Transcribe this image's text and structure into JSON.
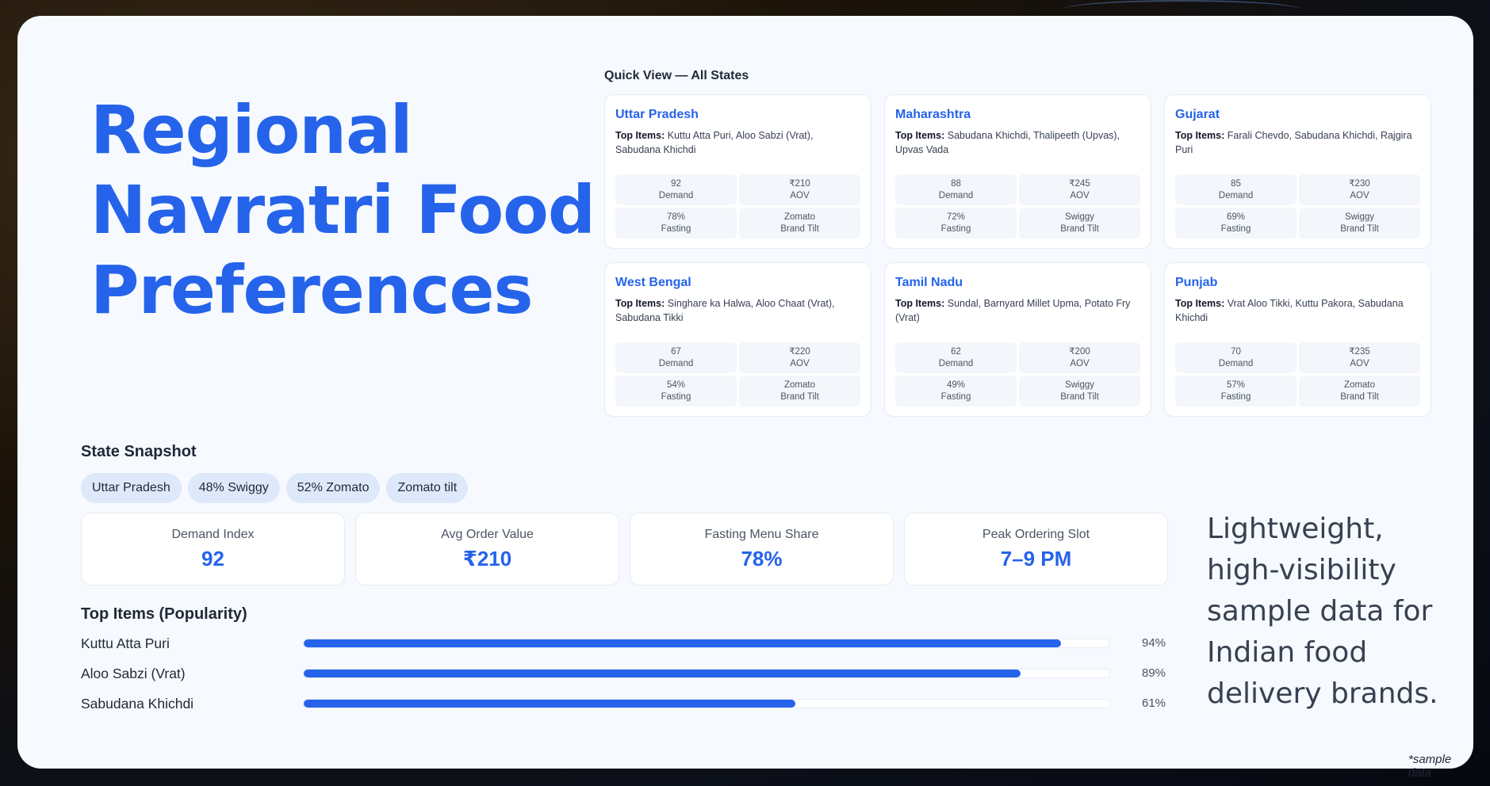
{
  "title": "Regional Navratri Food Preferences",
  "quick_view": {
    "title": "Quick View — All States",
    "states": [
      {
        "name": "Uttar Pradesh",
        "items": "Kuttu Atta Puri, Aloo Sabzi (Vrat), Sabudana Khichdi",
        "demand": "92",
        "aov": "₹210",
        "fasting": "78%",
        "brand": "Zomato"
      },
      {
        "name": "Maharashtra",
        "items": "Sabudana Khichdi, Thalipeeth (Upvas), Upvas Vada",
        "demand": "88",
        "aov": "₹245",
        "fasting": "72%",
        "brand": "Swiggy"
      },
      {
        "name": "Gujarat",
        "items": "Farali Chevdo, Sabudana Khichdi, Rajgira Puri",
        "demand": "85",
        "aov": "₹230",
        "fasting": "69%",
        "brand": "Swiggy"
      },
      {
        "name": "West Bengal",
        "items": "Singhare ka Halwa, Aloo Chaat (Vrat), Sabudana Tikki",
        "demand": "67",
        "aov": "₹220",
        "fasting": "54%",
        "brand": "Zomato"
      },
      {
        "name": "Tamil Nadu",
        "items": "Sundal, Barnyard Millet Upma, Potato Fry (Vrat)",
        "demand": "62",
        "aov": "₹200",
        "fasting": "49%",
        "brand": "Swiggy"
      },
      {
        "name": "Punjab",
        "items": "Vrat Aloo Tikki, Kuttu Pakora, Sabudana Khichdi",
        "demand": "70",
        "aov": "₹235",
        "fasting": "57%",
        "brand": "Zomato"
      }
    ],
    "labels": {
      "top_items": "Top Items:",
      "demand": "Demand",
      "aov": "AOV",
      "fasting": "Fasting",
      "brand_tilt": "Brand Tilt"
    }
  },
  "snapshot": {
    "title": "State Snapshot",
    "chips": [
      "Uttar Pradesh",
      "48% Swiggy",
      "52% Zomato",
      "Zomato tilt"
    ],
    "kpis": [
      {
        "label": "Demand Index",
        "value": "92"
      },
      {
        "label": "Avg Order Value",
        "value": "₹210"
      },
      {
        "label": "Fasting Menu Share",
        "value": "78%"
      },
      {
        "label": "Peak Ordering Slot",
        "value": "7–9 PM"
      }
    ]
  },
  "top_items": {
    "title": "Top Items (Popularity)",
    "items": [
      {
        "name": "Kuttu Atta Puri",
        "value": 94,
        "pct": "94%"
      },
      {
        "name": "Aloo Sabzi (Vrat)",
        "value": 89,
        "pct": "89%"
      },
      {
        "name": "Sabudana Khichdi",
        "value": 61,
        "pct": "61%"
      }
    ]
  },
  "tagline": "Lightweight, high-visibility sample data for Indian food delivery brands.",
  "footnote": "*sample data",
  "colors": {
    "accent": "#2563eb",
    "card_bg": "#f6f9fd",
    "chip_bg": "#dde8fb"
  }
}
